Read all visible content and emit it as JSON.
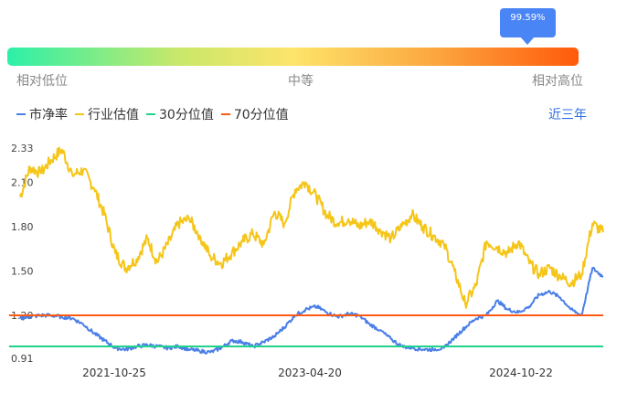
{
  "gauge": {
    "marker_label": "99.59%",
    "marker_fraction": 0.9959,
    "low_label": "相对低位",
    "mid_label": "中等",
    "high_label": "相对高位"
  },
  "period_label": "近三年",
  "colors": {
    "pb": "#4a7ee8",
    "industry": "#f5c518",
    "p30": "#1fd38a",
    "p70": "#ff5a14"
  },
  "chart_data": {
    "type": "line",
    "x_tick_labels": [
      "2021-10-25",
      "2023-04-20",
      "2024-10-22"
    ],
    "y_tick_labels": [
      "2.33",
      "2.10",
      "1.80",
      "1.50",
      "1.20",
      "0.91"
    ],
    "ylim": [
      0.91,
      2.33
    ],
    "x_start": "2021-02-01",
    "x_end": "2025-09-01",
    "legend": [
      "市净率",
      "行业估值",
      "30分位值",
      "70分位值"
    ],
    "p30_value": 0.99,
    "p70_value": 1.2,
    "series": [
      {
        "name": "行业估值",
        "points": [
          [
            "2021-02-01",
            2.0
          ],
          [
            "2021-03-01",
            2.2
          ],
          [
            "2021-04-01",
            2.16
          ],
          [
            "2021-05-01",
            2.25
          ],
          [
            "2021-06-01",
            2.32
          ],
          [
            "2021-07-01",
            2.15
          ],
          [
            "2021-08-01",
            2.18
          ],
          [
            "2021-09-01",
            2.06
          ],
          [
            "2021-10-01",
            1.88
          ],
          [
            "2021-11-01",
            1.62
          ],
          [
            "2021-12-01",
            1.52
          ],
          [
            "2022-01-01",
            1.58
          ],
          [
            "2022-02-01",
            1.72
          ],
          [
            "2022-03-01",
            1.56
          ],
          [
            "2022-04-01",
            1.68
          ],
          [
            "2022-05-01",
            1.82
          ],
          [
            "2022-06-01",
            1.85
          ],
          [
            "2022-07-01",
            1.74
          ],
          [
            "2022-08-01",
            1.6
          ],
          [
            "2022-09-01",
            1.55
          ],
          [
            "2022-10-01",
            1.62
          ],
          [
            "2022-11-01",
            1.7
          ],
          [
            "2022-12-01",
            1.75
          ],
          [
            "2023-01-01",
            1.68
          ],
          [
            "2023-02-01",
            1.9
          ],
          [
            "2023-03-01",
            1.82
          ],
          [
            "2023-04-01",
            2.05
          ],
          [
            "2023-05-01",
            2.1
          ],
          [
            "2023-06-01",
            2.0
          ],
          [
            "2023-07-01",
            1.88
          ],
          [
            "2023-08-01",
            1.82
          ],
          [
            "2023-09-01",
            1.85
          ],
          [
            "2023-10-01",
            1.8
          ],
          [
            "2023-11-01",
            1.84
          ],
          [
            "2023-12-01",
            1.78
          ],
          [
            "2024-01-01",
            1.72
          ],
          [
            "2024-02-01",
            1.8
          ],
          [
            "2024-03-01",
            1.88
          ],
          [
            "2024-04-01",
            1.8
          ],
          [
            "2024-05-01",
            1.74
          ],
          [
            "2024-06-01",
            1.68
          ],
          [
            "2024-07-01",
            1.5
          ],
          [
            "2024-08-01",
            1.28
          ],
          [
            "2024-09-01",
            1.4
          ],
          [
            "2024-10-01",
            1.7
          ],
          [
            "2024-11-01",
            1.66
          ],
          [
            "2024-12-01",
            1.62
          ],
          [
            "2025-01-01",
            1.7
          ],
          [
            "2025-02-01",
            1.55
          ],
          [
            "2025-03-01",
            1.48
          ],
          [
            "2025-04-01",
            1.52
          ],
          [
            "2025-05-01",
            1.46
          ],
          [
            "2025-06-01",
            1.42
          ],
          [
            "2025-07-01",
            1.48
          ],
          [
            "2025-08-01",
            1.82
          ],
          [
            "2025-09-01",
            1.76
          ]
        ]
      },
      {
        "name": "市净率",
        "points": [
          [
            "2021-02-01",
            1.18
          ],
          [
            "2021-03-01",
            1.19
          ],
          [
            "2021-04-01",
            1.2
          ],
          [
            "2021-05-01",
            1.2
          ],
          [
            "2021-06-01",
            1.19
          ],
          [
            "2021-07-01",
            1.18
          ],
          [
            "2021-08-01",
            1.14
          ],
          [
            "2021-09-01",
            1.08
          ],
          [
            "2021-10-01",
            1.03
          ],
          [
            "2021-11-01",
            0.98
          ],
          [
            "2021-12-01",
            0.97
          ],
          [
            "2022-01-01",
            0.99
          ],
          [
            "2022-02-01",
            1.0
          ],
          [
            "2022-03-01",
            0.99
          ],
          [
            "2022-04-01",
            0.98
          ],
          [
            "2022-05-01",
            0.99
          ],
          [
            "2022-06-01",
            0.97
          ],
          [
            "2022-07-01",
            0.96
          ],
          [
            "2022-08-01",
            0.95
          ],
          [
            "2022-09-01",
            0.98
          ],
          [
            "2022-10-01",
            1.03
          ],
          [
            "2022-11-01",
            1.02
          ],
          [
            "2022-12-01",
            0.99
          ],
          [
            "2023-01-01",
            1.02
          ],
          [
            "2023-02-01",
            1.06
          ],
          [
            "2023-03-01",
            1.12
          ],
          [
            "2023-04-01",
            1.2
          ],
          [
            "2023-05-01",
            1.24
          ],
          [
            "2023-06-01",
            1.26
          ],
          [
            "2023-07-01",
            1.22
          ],
          [
            "2023-08-01",
            1.19
          ],
          [
            "2023-09-01",
            1.21
          ],
          [
            "2023-10-01",
            1.2
          ],
          [
            "2023-11-01",
            1.14
          ],
          [
            "2023-12-01",
            1.1
          ],
          [
            "2024-01-01",
            1.04
          ],
          [
            "2024-02-01",
            0.99
          ],
          [
            "2024-03-01",
            0.98
          ],
          [
            "2024-04-01",
            0.97
          ],
          [
            "2024-05-01",
            0.97
          ],
          [
            "2024-06-01",
            0.98
          ],
          [
            "2024-07-01",
            1.05
          ],
          [
            "2024-08-01",
            1.12
          ],
          [
            "2024-09-01",
            1.18
          ],
          [
            "2024-10-01",
            1.2
          ],
          [
            "2024-11-01",
            1.3
          ],
          [
            "2024-12-01",
            1.24
          ],
          [
            "2025-01-01",
            1.22
          ],
          [
            "2025-02-01",
            1.26
          ],
          [
            "2025-03-01",
            1.34
          ],
          [
            "2025-04-01",
            1.36
          ],
          [
            "2025-05-01",
            1.32
          ],
          [
            "2025-06-01",
            1.24
          ],
          [
            "2025-07-01",
            1.2
          ],
          [
            "2025-08-01",
            1.52
          ],
          [
            "2025-09-01",
            1.46
          ]
        ]
      }
    ]
  }
}
